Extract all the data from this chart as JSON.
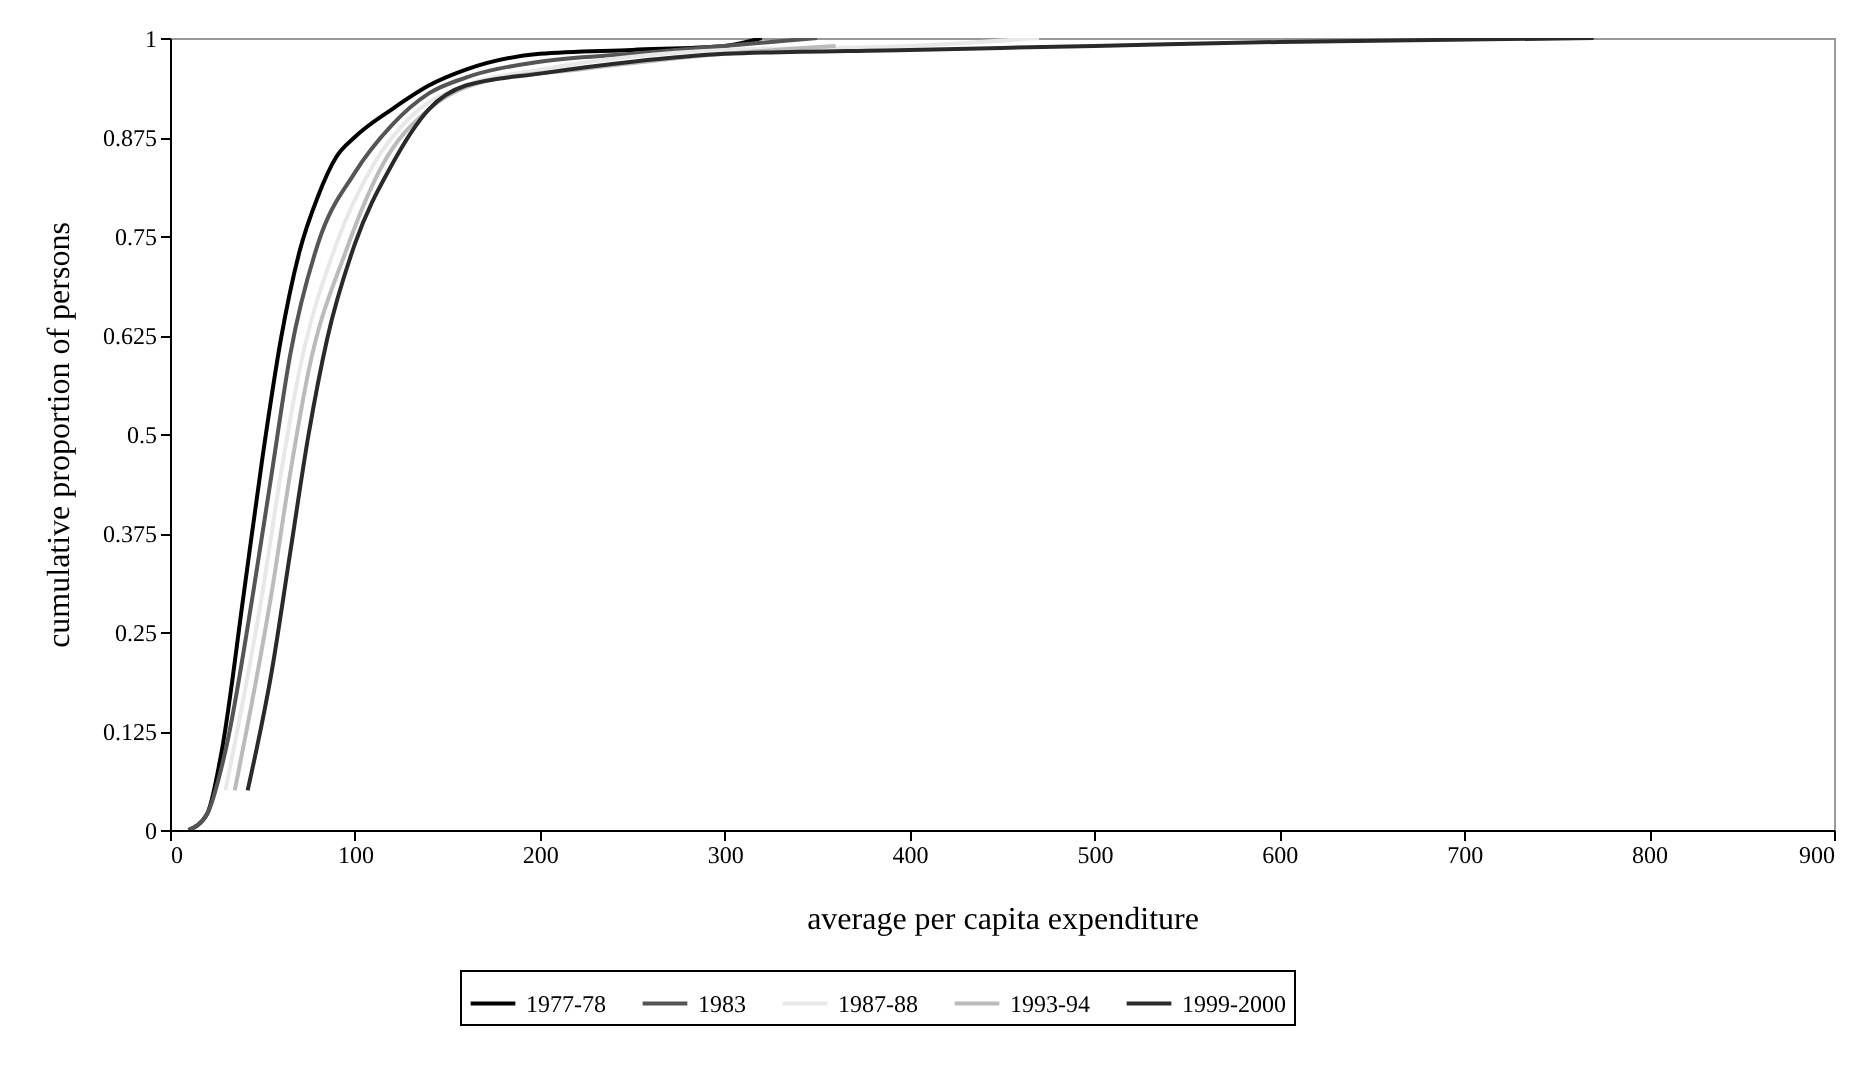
{
  "chart_data": {
    "type": "line",
    "xlabel": "average per capita expenditure",
    "ylabel": "cumulative proportion of persons",
    "xlim": [
      0,
      900
    ],
    "xticks": [
      0,
      100,
      200,
      300,
      400,
      500,
      600,
      700,
      800,
      900
    ],
    "ylim": [
      0,
      1
    ],
    "yticks": [
      0,
      0.125,
      0.25,
      0.375,
      0.5,
      0.625,
      0.75,
      0.875,
      1
    ],
    "grid": false,
    "legend": "bottom",
    "marker": "none",
    "line_style": "solid",
    "series": [
      {
        "name": "1977-78",
        "color": "#000000",
        "x": [
          10,
          20,
          28,
          40,
          50,
          60,
          70,
          80,
          90,
          100,
          120,
          140,
          160,
          200,
          250,
          300,
          320
        ],
        "values": [
          0,
          0.02,
          0.1,
          0.3,
          0.47,
          0.62,
          0.73,
          0.8,
          0.85,
          0.875,
          0.91,
          0.94,
          0.96,
          0.98,
          0.985,
          0.99,
          1
        ]
      },
      {
        "name": "1983",
        "color": "#555555",
        "x": [
          10,
          20,
          30,
          45,
          55,
          65,
          80,
          100,
          120,
          140,
          160,
          200,
          250,
          300,
          350
        ],
        "values": [
          0,
          0.02,
          0.1,
          0.3,
          0.45,
          0.6,
          0.74,
          0.83,
          0.89,
          0.93,
          0.95,
          0.97,
          0.98,
          0.99,
          1
        ]
      },
      {
        "name": "1987-88",
        "color": "#e8e8e8",
        "x": [
          30,
          50,
          60,
          70,
          90,
          110,
          130,
          160,
          200,
          300,
          400,
          470
        ],
        "values": [
          0.05,
          0.3,
          0.45,
          0.58,
          0.74,
          0.84,
          0.9,
          0.94,
          0.96,
          0.985,
          0.99,
          1
        ]
      },
      {
        "name": "1993-94",
        "color": "#bbbbbb",
        "x": [
          35,
          55,
          65,
          75,
          95,
          115,
          140,
          170,
          220,
          300,
          360
        ],
        "values": [
          0.05,
          0.3,
          0.45,
          0.58,
          0.73,
          0.84,
          0.91,
          0.945,
          0.96,
          0.98,
          0.99
        ]
      },
      {
        "name": "1999-2000",
        "color": "#2a2a2a",
        "x": [
          42,
          55,
          65,
          75,
          85,
          100,
          120,
          140,
          160,
          200,
          250,
          300,
          400,
          500,
          600,
          770
        ],
        "values": [
          0.05,
          0.2,
          0.35,
          0.5,
          0.62,
          0.74,
          0.84,
          0.91,
          0.94,
          0.955,
          0.97,
          0.98,
          0.985,
          0.99,
          0.995,
          1
        ]
      }
    ]
  }
}
